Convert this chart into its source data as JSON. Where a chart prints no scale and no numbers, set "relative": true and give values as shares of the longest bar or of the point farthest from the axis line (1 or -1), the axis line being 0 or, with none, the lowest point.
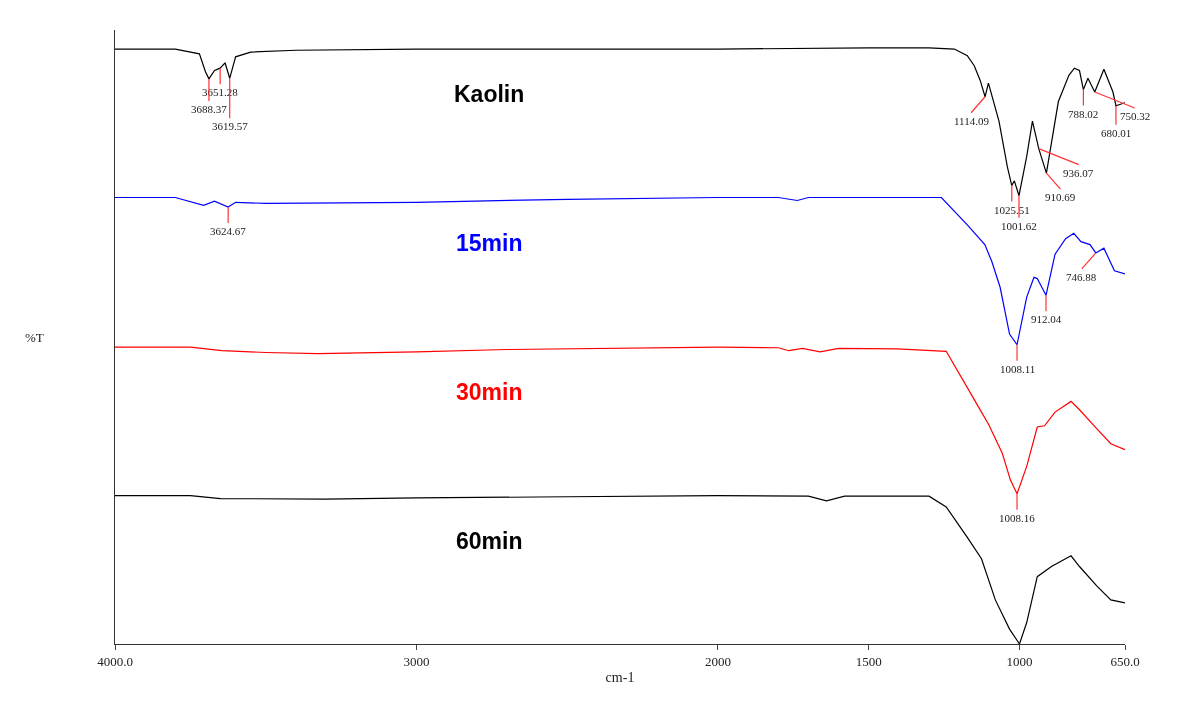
{
  "chart_data": {
    "type": "line",
    "relative": true,
    "xlabel": "cm-1",
    "ylabel": "%T",
    "xlim": [
      4000,
      650
    ],
    "xticks": [
      {
        "value": 4000,
        "label": "4000.0"
      },
      3000,
      2000,
      1500,
      1000,
      {
        "value": 650,
        "label": "650.0"
      }
    ],
    "legend": false,
    "grid": false,
    "marker": "none",
    "line_style": "solid",
    "series": [
      {
        "name": "Kaolin",
        "color": "#000000",
        "x": [
          4000,
          3800,
          3720,
          3700,
          3688.37,
          3670,
          3651.28,
          3635,
          3619.57,
          3600,
          3550,
          3400,
          3000,
          2500,
          2000,
          1500,
          1300,
          1216,
          1173,
          1150,
          1130,
          1114.09,
          1103,
          1068,
          1040,
          1025.51,
          1017,
          1001.62,
          976,
          957,
          936.07,
          910.69,
          871,
          836,
          818,
          801,
          788.02,
          773,
          750.32,
          720,
          690,
          680.01,
          650
        ],
        "values": [
          0.998,
          0.998,
          0.99,
          0.96,
          0.948,
          0.962,
          0.966,
          0.975,
          0.949,
          0.985,
          0.993,
          0.996,
          0.998,
          0.998,
          0.998,
          1.0,
          1.0,
          0.998,
          0.987,
          0.97,
          0.945,
          0.918,
          0.941,
          0.877,
          0.8,
          0.769,
          0.777,
          0.752,
          0.818,
          0.877,
          0.831,
          0.79,
          0.91,
          0.954,
          0.966,
          0.962,
          0.93,
          0.949,
          0.926,
          0.964,
          0.926,
          0.903,
          0.908
        ]
      },
      {
        "name": "15min",
        "color": "#0000ff",
        "x": [
          4000,
          3800,
          3706,
          3670,
          3624.67,
          3600,
          3500,
          3000,
          2500,
          2000,
          1800,
          1737,
          1700,
          1500,
          1259,
          1173,
          1115,
          1092,
          1064,
          1033,
          1008.11,
          976,
          952,
          941,
          912.04,
          882,
          847,
          820,
          796,
          766,
          746.88,
          720,
          685,
          650
        ],
        "values": [
          0.749,
          0.749,
          0.736,
          0.743,
          0.733,
          0.741,
          0.739,
          0.741,
          0.746,
          0.749,
          0.749,
          0.744,
          0.749,
          0.749,
          0.749,
          0.703,
          0.67,
          0.642,
          0.598,
          0.52,
          0.502,
          0.582,
          0.615,
          0.613,
          0.585,
          0.654,
          0.68,
          0.689,
          0.675,
          0.67,
          0.656,
          0.664,
          0.626,
          0.621
        ]
      },
      {
        "name": "30min",
        "color": "#ff0000",
        "x": [
          4000,
          3750,
          3645,
          3500,
          3327,
          3000,
          2700,
          2000,
          1800,
          1765,
          1720,
          1661,
          1600,
          1405,
          1243,
          1173,
          1126,
          1103,
          1057,
          1030,
          1008.16,
          976,
          941,
          917,
          882,
          829,
          801,
          743,
          697,
          650
        ],
        "values": [
          0.498,
          0.498,
          0.492,
          0.489,
          0.487,
          0.49,
          0.494,
          0.498,
          0.497,
          0.492,
          0.496,
          0.49,
          0.496,
          0.495,
          0.491,
          0.43,
          0.389,
          0.369,
          0.32,
          0.275,
          0.252,
          0.298,
          0.364,
          0.366,
          0.389,
          0.407,
          0.393,
          0.361,
          0.336,
          0.326
        ]
      },
      {
        "name": "60min",
        "color": "#000000",
        "x": [
          4000,
          3750,
          3650,
          3304,
          3000,
          2500,
          2000,
          1700,
          1640,
          1580,
          1300,
          1243,
          1173,
          1126,
          1080,
          1033,
          1000,
          976,
          941,
          894,
          829,
          801,
          743,
          697,
          650
        ],
        "values": [
          0.249,
          0.249,
          0.244,
          0.243,
          0.245,
          0.247,
          0.249,
          0.248,
          0.24,
          0.248,
          0.248,
          0.23,
          0.179,
          0.143,
          0.074,
          0.025,
          0.0,
          0.036,
          0.113,
          0.13,
          0.148,
          0.13,
          0.097,
          0.074,
          0.069
        ]
      }
    ],
    "annotations": [
      {
        "text": "3651.28",
        "x": 3651.28,
        "y": 0.966
      },
      {
        "text": "3688.37",
        "x": 3688.37,
        "y": 0.948
      },
      {
        "text": "3619.57",
        "x": 3619.57,
        "y": 0.949
      },
      {
        "text": "1114.09",
        "x": 1114.09,
        "y": 0.918
      },
      {
        "text": "1025.51",
        "x": 1025.51,
        "y": 0.769
      },
      {
        "text": "1001.62",
        "x": 1001.62,
        "y": 0.752
      },
      {
        "text": "936.07",
        "x": 936.07,
        "y": 0.831
      },
      {
        "text": "910.69",
        "x": 910.69,
        "y": 0.79
      },
      {
        "text": "3624.67",
        "x": 3624.67,
        "y": 0.733
      },
      {
        "text": "788.02",
        "x": 788.02,
        "y": 0.93
      },
      {
        "text": "750.32",
        "x": 750.32,
        "y": 0.926
      },
      {
        "text": "680.01",
        "x": 680.01,
        "y": 0.903
      },
      {
        "text": "1008.11",
        "x": 1008.11,
        "y": 0.502
      },
      {
        "text": "912.04",
        "x": 912.04,
        "y": 0.585
      },
      {
        "text": "746.88",
        "x": 746.88,
        "y": 0.656
      },
      {
        "text": "1008.16",
        "x": 1008.16,
        "y": 0.252
      }
    ]
  }
}
